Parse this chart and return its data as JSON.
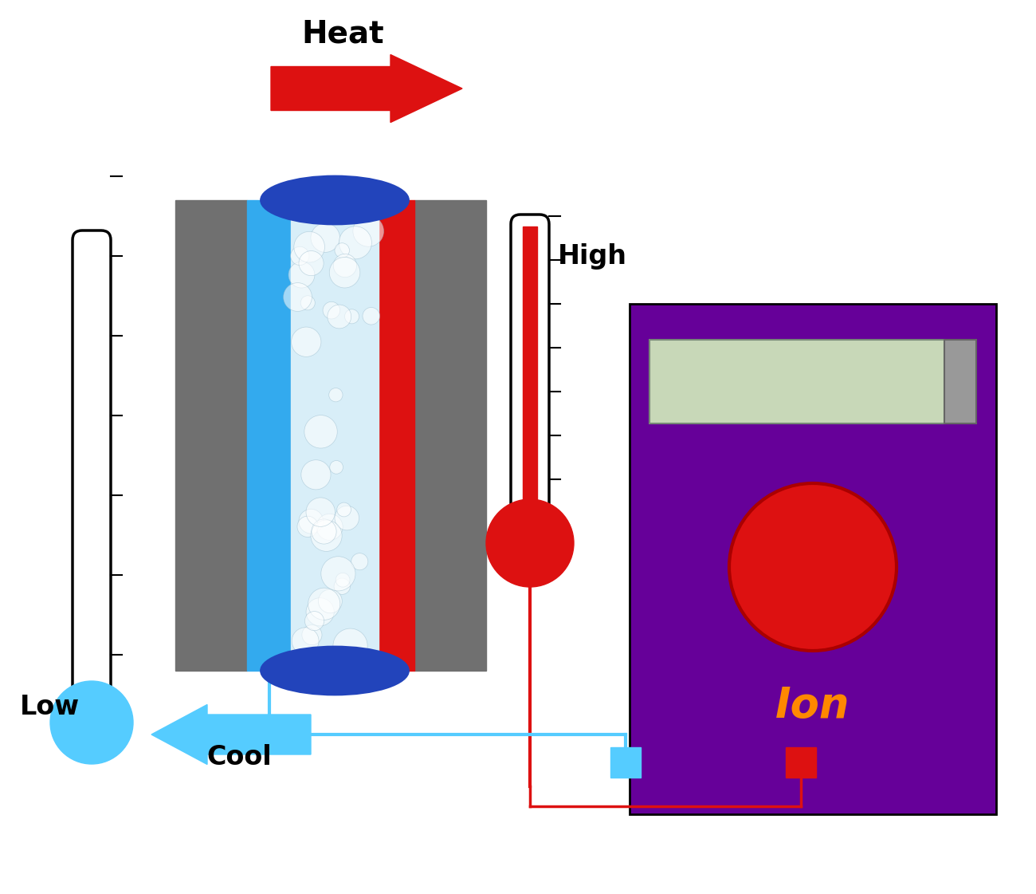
{
  "bg_color": "#ffffff",
  "heat_text": "Heat",
  "high_text": "High",
  "low_text": "Low",
  "cool_text": "Cool",
  "ion_text": "Ion",
  "colors": {
    "gray": "#707070",
    "blue_dark": "#2244bb",
    "blue_light": "#33aaee",
    "blue_cyan": "#55ccff",
    "red": "#dd1111",
    "red_dark": "#aa0000",
    "purple": "#660099",
    "green_light": "#c8d8b8",
    "gray_light": "#999999",
    "orange": "#ff8800",
    "white_blue": "#d8eef8",
    "black": "#000000",
    "white": "#ffffff"
  },
  "fig_w": 13.0,
  "fig_h": 11.21
}
